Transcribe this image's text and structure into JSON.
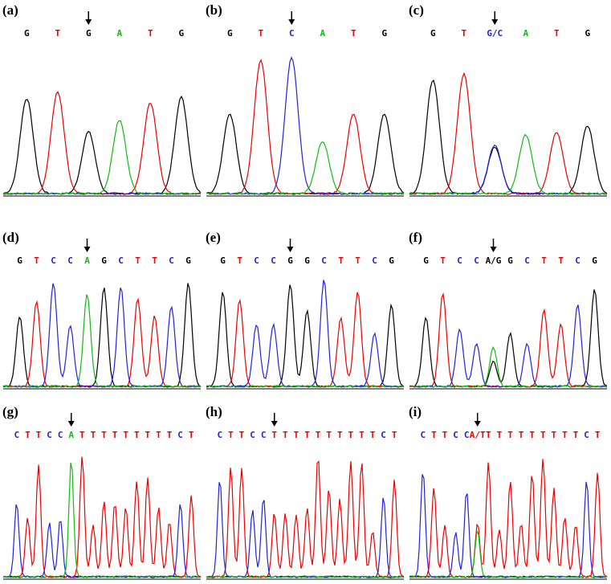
{
  "panels": [
    {
      "label": "(a)",
      "bases": [
        "G",
        "T",
        "G",
        "A",
        "T",
        "G"
      ]
    },
    {
      "label": "(b)",
      "bases": [
        "G",
        "T",
        "C",
        "A",
        "T",
        "G"
      ]
    },
    {
      "label": "(c)",
      "bases": [
        "G",
        "T",
        "G/C",
        "A",
        "T",
        "G"
      ]
    },
    {
      "label": "(d)",
      "bases": [
        "G",
        "T",
        "C",
        "C",
        "A",
        "G",
        "C",
        "T",
        "T",
        "C",
        "G"
      ]
    },
    {
      "label": "(e)",
      "bases": [
        "G",
        "T",
        "C",
        "C",
        "G",
        "G",
        "C",
        "T",
        "T",
        "C",
        "G"
      ]
    },
    {
      "label": "(f)",
      "bases": [
        "G",
        "T",
        "C",
        "C",
        "A/G",
        "G",
        "C",
        "T",
        "T",
        "C",
        "G"
      ]
    },
    {
      "label": "(g)",
      "bases": [
        "C",
        "T",
        "T",
        "C",
        "C",
        "A",
        "T",
        "T",
        "T",
        "T",
        "T",
        "T",
        "T",
        "T",
        "T",
        "C",
        "T"
      ]
    },
    {
      "label": "(h)",
      "bases": [
        "C",
        "T",
        "T",
        "C",
        "C",
        "T",
        "T",
        "T",
        "T",
        "T",
        "T",
        "T",
        "T",
        "T",
        "T",
        "C",
        "T"
      ]
    },
    {
      "label": "(i)",
      "bases": [
        "C",
        "T",
        "T",
        "C",
        "C",
        "A/T",
        "T",
        "T",
        "T",
        "T",
        "T",
        "T",
        "T",
        "T",
        "T",
        "C",
        "T"
      ]
    }
  ]
}
